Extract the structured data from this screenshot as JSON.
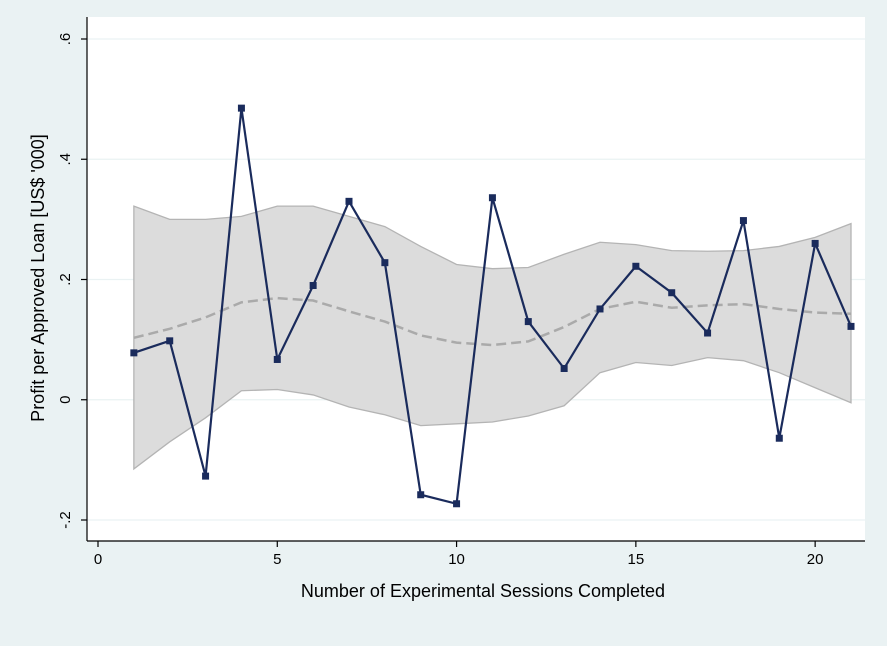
{
  "chart_data": {
    "type": "line",
    "xlabel": "Number of Experimental Sessions Completed",
    "ylabel": "Profit per Approved Loan  [US$ '000]",
    "xlim": [
      0,
      21
    ],
    "ylim": [
      -0.2,
      0.6
    ],
    "xticks": [
      0,
      5,
      10,
      15,
      20
    ],
    "xtick_labels": [
      "0",
      "5",
      "10",
      "15",
      "20"
    ],
    "yticks": [
      -0.2,
      0,
      0.2,
      0.4,
      0.6
    ],
    "ytick_labels": [
      "-.2",
      "0",
      ".2",
      ".4",
      ".6"
    ],
    "grid": true,
    "series": [
      {
        "kind": "line-markers",
        "color": "#1a2b5c",
        "x": [
          1,
          2,
          3,
          4,
          5,
          6,
          7,
          8,
          9,
          10,
          11,
          12,
          13,
          14,
          15,
          16,
          17,
          18,
          19,
          20,
          21
        ],
        "values": [
          0.078,
          0.098,
          -0.127,
          0.485,
          0.067,
          0.19,
          0.33,
          0.228,
          -0.158,
          -0.173,
          0.336,
          0.13,
          0.052,
          0.151,
          0.222,
          0.178,
          0.111,
          0.298,
          -0.064,
          0.26,
          0.122
        ]
      },
      {
        "kind": "dashed-line",
        "color": "#aaaaaa",
        "x": [
          1,
          2,
          3,
          4,
          5,
          6,
          7,
          8,
          9,
          10,
          11,
          12,
          13,
          14,
          15,
          16,
          17,
          18,
          19,
          20,
          21
        ],
        "values": [
          0.103,
          0.118,
          0.137,
          0.162,
          0.169,
          0.165,
          0.147,
          0.13,
          0.107,
          0.095,
          0.091,
          0.097,
          0.121,
          0.151,
          0.163,
          0.153,
          0.157,
          0.159,
          0.151,
          0.145,
          0.143
        ]
      },
      {
        "kind": "band",
        "color": "#dcdcdc",
        "x": [
          1,
          2,
          3,
          4,
          5,
          6,
          7,
          8,
          9,
          10,
          11,
          12,
          13,
          14,
          15,
          16,
          17,
          18,
          19,
          20,
          21
        ],
        "upper": [
          0.322,
          0.3,
          0.3,
          0.305,
          0.322,
          0.322,
          0.305,
          0.288,
          0.255,
          0.225,
          0.218,
          0.22,
          0.242,
          0.262,
          0.258,
          0.248,
          0.247,
          0.248,
          0.255,
          0.27,
          0.293
        ],
        "lower": [
          -0.115,
          -0.07,
          -0.03,
          0.015,
          0.017,
          0.008,
          -0.012,
          -0.025,
          -0.043,
          -0.04,
          -0.037,
          -0.027,
          -0.01,
          0.045,
          0.062,
          0.057,
          0.07,
          0.065,
          0.045,
          0.02,
          -0.005
        ]
      }
    ]
  }
}
